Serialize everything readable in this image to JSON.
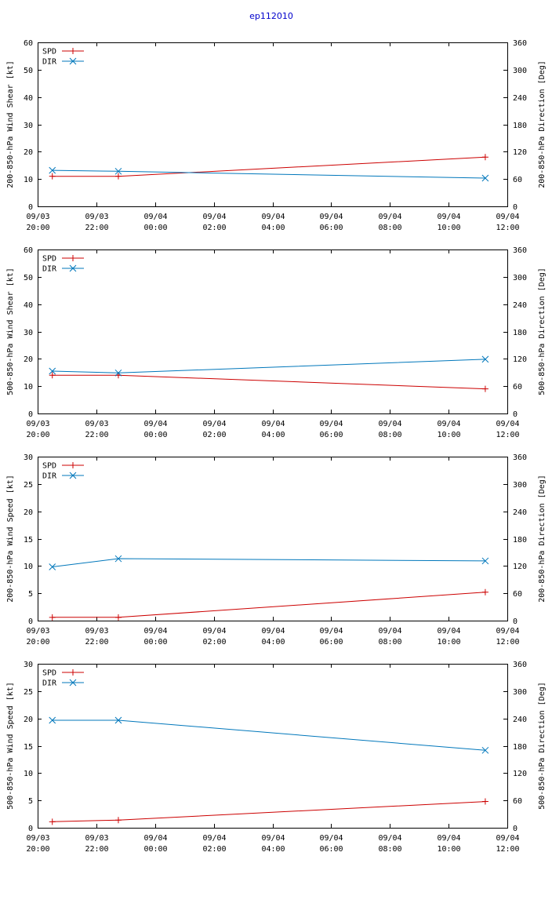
{
  "title": "ep112010",
  "colors": {
    "spd": "#cc0000",
    "dir": "#0077bb",
    "title": "#0000cc"
  },
  "chart_data": [
    {
      "type": "line",
      "ylabel": "200-850-hPa Wind Shear [kt]",
      "y2label": "200-850-hPa Direction [Deg]",
      "ylim": [
        0,
        60
      ],
      "yticks": [
        0,
        10,
        20,
        30,
        40,
        50,
        60
      ],
      "y2lim": [
        0,
        360
      ],
      "y2ticks": [
        0,
        60,
        120,
        180,
        240,
        300,
        360
      ],
      "xlim": [
        0,
        16
      ],
      "xticks": [
        {
          "x": 0,
          "date": "09/03",
          "time": "20:00"
        },
        {
          "x": 2,
          "date": "09/03",
          "time": "22:00"
        },
        {
          "x": 4,
          "date": "09/04",
          "time": "00:00"
        },
        {
          "x": 6,
          "date": "09/04",
          "time": "02:00"
        },
        {
          "x": 8,
          "date": "09/04",
          "time": "04:00"
        },
        {
          "x": 10,
          "date": "09/04",
          "time": "06:00"
        },
        {
          "x": 12,
          "date": "09/04",
          "time": "08:00"
        },
        {
          "x": 14,
          "date": "09/04",
          "time": "10:00"
        },
        {
          "x": 16,
          "date": "09/04",
          "time": "12:00"
        }
      ],
      "legend_position": "top-left",
      "series": [
        {
          "name": "SPD",
          "axis": "left",
          "marker": "plus",
          "x": [
            0.5,
            2.75,
            15.25
          ],
          "values": [
            11,
            11,
            18
          ]
        },
        {
          "name": "DIR",
          "axis": "right",
          "marker": "cross",
          "x": [
            0.5,
            2.75,
            15.25
          ],
          "values": [
            79,
            77,
            62
          ]
        }
      ]
    },
    {
      "type": "line",
      "ylabel": "500-850-hPa Wind Shear [kt]",
      "y2label": "500-850-hPa Direction [Deg]",
      "ylim": [
        0,
        60
      ],
      "yticks": [
        0,
        10,
        20,
        30,
        40,
        50,
        60
      ],
      "y2lim": [
        0,
        360
      ],
      "y2ticks": [
        0,
        60,
        120,
        180,
        240,
        300,
        360
      ],
      "xlim": [
        0,
        16
      ],
      "xticks": [
        {
          "x": 0,
          "date": "09/03",
          "time": "20:00"
        },
        {
          "x": 2,
          "date": "09/03",
          "time": "22:00"
        },
        {
          "x": 4,
          "date": "09/04",
          "time": "00:00"
        },
        {
          "x": 6,
          "date": "09/04",
          "time": "02:00"
        },
        {
          "x": 8,
          "date": "09/04",
          "time": "04:00"
        },
        {
          "x": 10,
          "date": "09/04",
          "time": "06:00"
        },
        {
          "x": 12,
          "date": "09/04",
          "time": "08:00"
        },
        {
          "x": 14,
          "date": "09/04",
          "time": "10:00"
        },
        {
          "x": 16,
          "date": "09/04",
          "time": "12:00"
        }
      ],
      "legend_position": "top-left",
      "series": [
        {
          "name": "SPD",
          "axis": "left",
          "marker": "plus",
          "x": [
            0.5,
            2.75,
            15.25
          ],
          "values": [
            14,
            14,
            9
          ]
        },
        {
          "name": "DIR",
          "axis": "right",
          "marker": "cross",
          "x": [
            0.5,
            2.75,
            15.25
          ],
          "values": [
            93,
            89,
            119
          ]
        }
      ]
    },
    {
      "type": "line",
      "ylabel": "200-850-hPa Wind Speed [kt]",
      "y2label": "200-850-hPa Direction [Deg]",
      "ylim": [
        0,
        30
      ],
      "yticks": [
        0,
        5,
        10,
        15,
        20,
        25,
        30
      ],
      "y2lim": [
        0,
        360
      ],
      "y2ticks": [
        0,
        60,
        120,
        180,
        240,
        300,
        360
      ],
      "xlim": [
        0,
        16
      ],
      "xticks": [
        {
          "x": 0,
          "date": "09/03",
          "time": "20:00"
        },
        {
          "x": 2,
          "date": "09/03",
          "time": "22:00"
        },
        {
          "x": 4,
          "date": "09/04",
          "time": "00:00"
        },
        {
          "x": 6,
          "date": "09/04",
          "time": "02:00"
        },
        {
          "x": 8,
          "date": "09/04",
          "time": "04:00"
        },
        {
          "x": 10,
          "date": "09/04",
          "time": "06:00"
        },
        {
          "x": 12,
          "date": "09/04",
          "time": "08:00"
        },
        {
          "x": 14,
          "date": "09/04",
          "time": "10:00"
        },
        {
          "x": 16,
          "date": "09/04",
          "time": "12:00"
        }
      ],
      "legend_position": "top-left",
      "series": [
        {
          "name": "SPD",
          "axis": "left",
          "marker": "plus",
          "x": [
            0.5,
            2.75,
            15.25
          ],
          "values": [
            0.6,
            0.6,
            5.2
          ]
        },
        {
          "name": "DIR",
          "axis": "right",
          "marker": "cross",
          "x": [
            0.5,
            2.75,
            15.25
          ],
          "values": [
            118,
            136,
            131
          ]
        }
      ]
    },
    {
      "type": "line",
      "ylabel": "500-850-hPa Wind Speed [kt]",
      "y2label": "500-850-hPa Direction [Deg]",
      "ylim": [
        0,
        30
      ],
      "yticks": [
        0,
        5,
        10,
        15,
        20,
        25,
        30
      ],
      "y2lim": [
        0,
        360
      ],
      "y2ticks": [
        0,
        60,
        120,
        180,
        240,
        300,
        360
      ],
      "xlim": [
        0,
        16
      ],
      "xticks": [
        {
          "x": 0,
          "date": "09/03",
          "time": "20:00"
        },
        {
          "x": 2,
          "date": "09/03",
          "time": "22:00"
        },
        {
          "x": 4,
          "date": "09/04",
          "time": "00:00"
        },
        {
          "x": 6,
          "date": "09/04",
          "time": "02:00"
        },
        {
          "x": 8,
          "date": "09/04",
          "time": "04:00"
        },
        {
          "x": 10,
          "date": "09/04",
          "time": "06:00"
        },
        {
          "x": 12,
          "date": "09/04",
          "time": "08:00"
        },
        {
          "x": 14,
          "date": "09/04",
          "time": "10:00"
        },
        {
          "x": 16,
          "date": "09/04",
          "time": "12:00"
        }
      ],
      "legend_position": "top-left",
      "series": [
        {
          "name": "SPD",
          "axis": "left",
          "marker": "plus",
          "x": [
            0.5,
            2.75,
            15.25
          ],
          "values": [
            1.1,
            1.4,
            4.8
          ]
        },
        {
          "name": "DIR",
          "axis": "right",
          "marker": "cross",
          "x": [
            0.5,
            2.75,
            15.25
          ],
          "values": [
            236,
            236,
            170
          ]
        }
      ]
    }
  ]
}
